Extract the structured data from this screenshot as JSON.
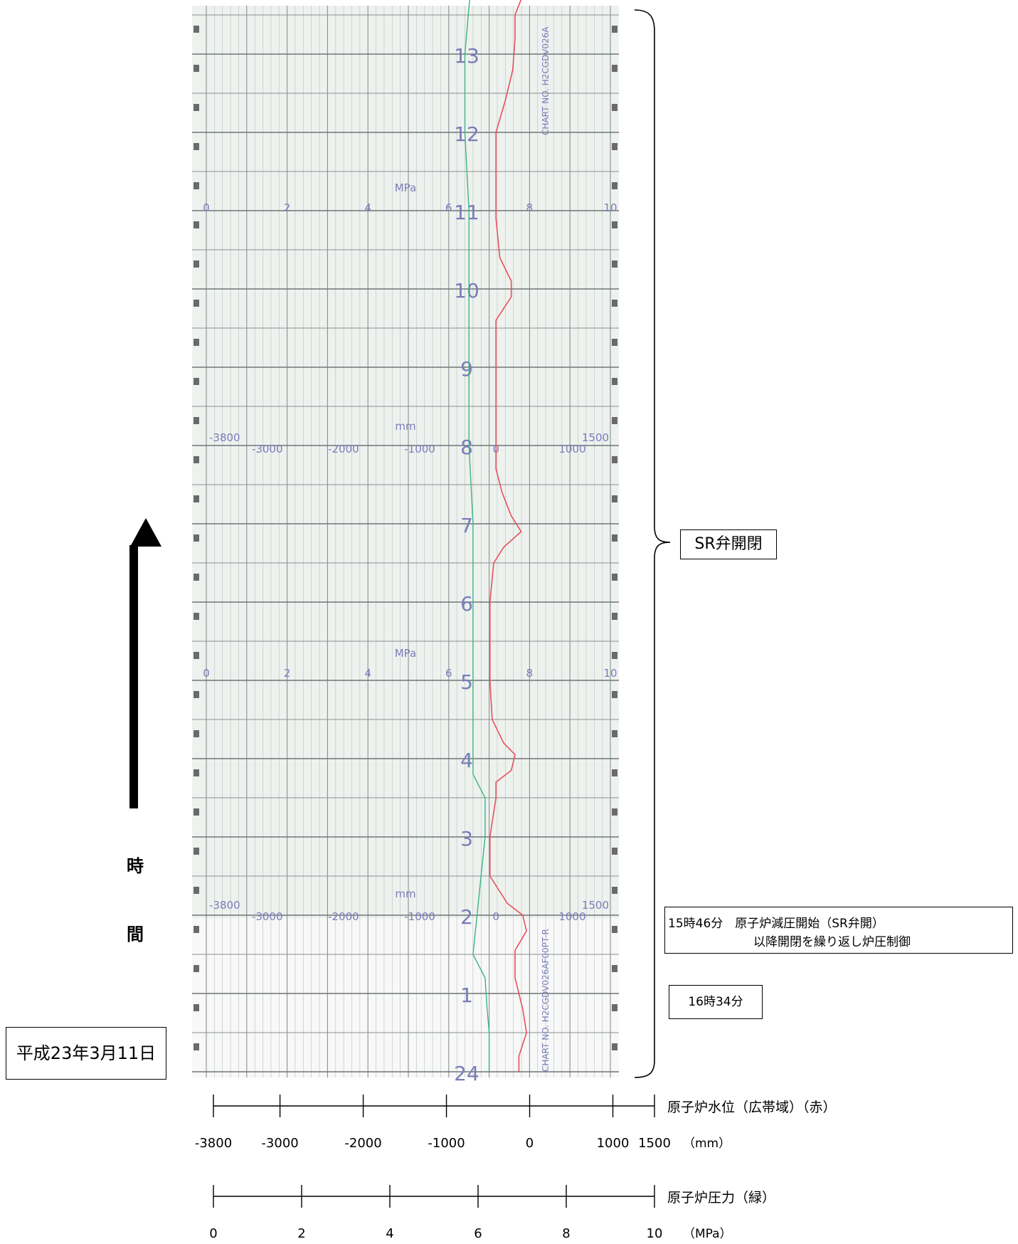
{
  "date_label": "平成23年3月11日",
  "time_axis_label": [
    "時",
    "間"
  ],
  "annotations": {
    "sr_valve": "SR弁開閉",
    "event_1546_line1": "15時46分　原子炉減圧開始（SR弁開）",
    "event_1546_line2": "以降開閉を繰り返し炉圧制御",
    "event_1634": "16時34分"
  },
  "paper": {
    "hour_labels": [
      "24",
      "1",
      "2",
      "3",
      "4",
      "5",
      "6",
      "7",
      "8",
      "9",
      "10",
      "11",
      "12",
      "13"
    ],
    "pressure_unit": "MPa",
    "pressure_ticks": [
      "0",
      "2",
      "4",
      "6",
      "8",
      "10"
    ],
    "level_unit": "mm",
    "level_ticks_top": [
      "-3800",
      "1500"
    ],
    "level_ticks_bottom": [
      "-3000",
      "-2000",
      "-1000",
      "0",
      "1000"
    ],
    "chart_no_top": "CHART NO. H2CGDV026A",
    "chart_no_bottom": "CHART NO. H2CGDV026AF00PT-R"
  },
  "scales": {
    "level": {
      "name": "原子炉水位（広帯域）（赤）",
      "unit": "（mm）",
      "ticks": [
        "-3800",
        "-3000",
        "-2000",
        "-1000",
        "0",
        "1000",
        "1500"
      ]
    },
    "pressure": {
      "name": "原子炉圧力（緑）",
      "unit": "（MPa）",
      "ticks": [
        "0",
        "2",
        "4",
        "6",
        "8",
        "10"
      ]
    }
  },
  "colors": {
    "paper": "#eef2ef",
    "grid_major": "#8a9090",
    "grid_minor": "#b8c0be",
    "water_level": "#e8505a",
    "pressure": "#3cb482",
    "printed_scale": "#7a7cb8"
  },
  "chart_data": {
    "type": "line",
    "title": "",
    "x_axis": "time (hours, chart printed labels 24 → 13)",
    "series": [
      {
        "name": "原子炉水位（広帯域）（赤）",
        "unit": "mm",
        "xlim": [
          -3800,
          1500
        ],
        "points": [
          {
            "h": 0.0,
            "v": 300
          },
          {
            "h": 0.2,
            "v": 300
          },
          {
            "h": 0.5,
            "v": 400
          },
          {
            "h": 0.8,
            "v": 350
          },
          {
            "h": 1.2,
            "v": 250
          },
          {
            "h": 1.55,
            "v": 250
          },
          {
            "h": 1.8,
            "v": 400
          },
          {
            "h": 2.0,
            "v": 350
          },
          {
            "h": 2.15,
            "v": 150
          },
          {
            "h": 2.5,
            "v": -80
          },
          {
            "h": 3.0,
            "v": -80
          },
          {
            "h": 3.5,
            "v": 0
          },
          {
            "h": 3.7,
            "v": 0
          },
          {
            "h": 3.85,
            "v": 200
          },
          {
            "h": 4.05,
            "v": 250
          },
          {
            "h": 4.2,
            "v": 100
          },
          {
            "h": 4.5,
            "v": -50
          },
          {
            "h": 5.0,
            "v": -80
          },
          {
            "h": 5.6,
            "v": -80
          },
          {
            "h": 6.0,
            "v": -80
          },
          {
            "h": 6.5,
            "v": -30
          },
          {
            "h": 6.7,
            "v": 100
          },
          {
            "h": 6.9,
            "v": 330
          },
          {
            "h": 7.1,
            "v": 200
          },
          {
            "h": 7.4,
            "v": 80
          },
          {
            "h": 7.7,
            "v": 0
          },
          {
            "h": 8.0,
            "v": 0
          },
          {
            "h": 8.3,
            "v": 0
          },
          {
            "h": 9.0,
            "v": 0
          },
          {
            "h": 9.6,
            "v": 0
          },
          {
            "h": 9.9,
            "v": 200
          },
          {
            "h": 10.1,
            "v": 200
          },
          {
            "h": 10.4,
            "v": 50
          },
          {
            "h": 10.9,
            "v": 0
          },
          {
            "h": 11.5,
            "v": 0
          },
          {
            "h": 12.0,
            "v": 0
          },
          {
            "h": 12.4,
            "v": 120
          },
          {
            "h": 12.8,
            "v": 220
          },
          {
            "h": 13.2,
            "v": 250
          },
          {
            "h": 13.5,
            "v": 250
          },
          {
            "h": 13.7,
            "v": 330
          },
          {
            "h": 13.85,
            "v": 250
          }
        ]
      },
      {
        "name": "原子炉圧力（緑）",
        "unit": "MPa",
        "xlim": [
          0,
          10
        ],
        "points": [
          {
            "h": 0.0,
            "v": 7.0
          },
          {
            "h": 0.5,
            "v": 7.0
          },
          {
            "h": 0.8,
            "v": 6.95
          },
          {
            "h": 1.2,
            "v": 6.9
          },
          {
            "h": 1.5,
            "v": 6.6
          },
          {
            "h": 2.0,
            "v": 6.7
          },
          {
            "h": 2.5,
            "v": 6.8
          },
          {
            "h": 3.0,
            "v": 6.9
          },
          {
            "h": 3.5,
            "v": 6.9
          },
          {
            "h": 3.8,
            "v": 6.6
          },
          {
            "h": 4.0,
            "v": 6.6
          },
          {
            "h": 5.0,
            "v": 6.6
          },
          {
            "h": 6.0,
            "v": 6.6
          },
          {
            "h": 7.0,
            "v": 6.6
          },
          {
            "h": 8.0,
            "v": 6.5
          },
          {
            "h": 9.0,
            "v": 6.5
          },
          {
            "h": 10.0,
            "v": 6.5
          },
          {
            "h": 11.0,
            "v": 6.5
          },
          {
            "h": 12.0,
            "v": 6.4
          },
          {
            "h": 13.0,
            "v": 6.4
          },
          {
            "h": 13.6,
            "v": 6.5
          },
          {
            "h": 13.85,
            "v": 6.55
          }
        ]
      }
    ]
  }
}
